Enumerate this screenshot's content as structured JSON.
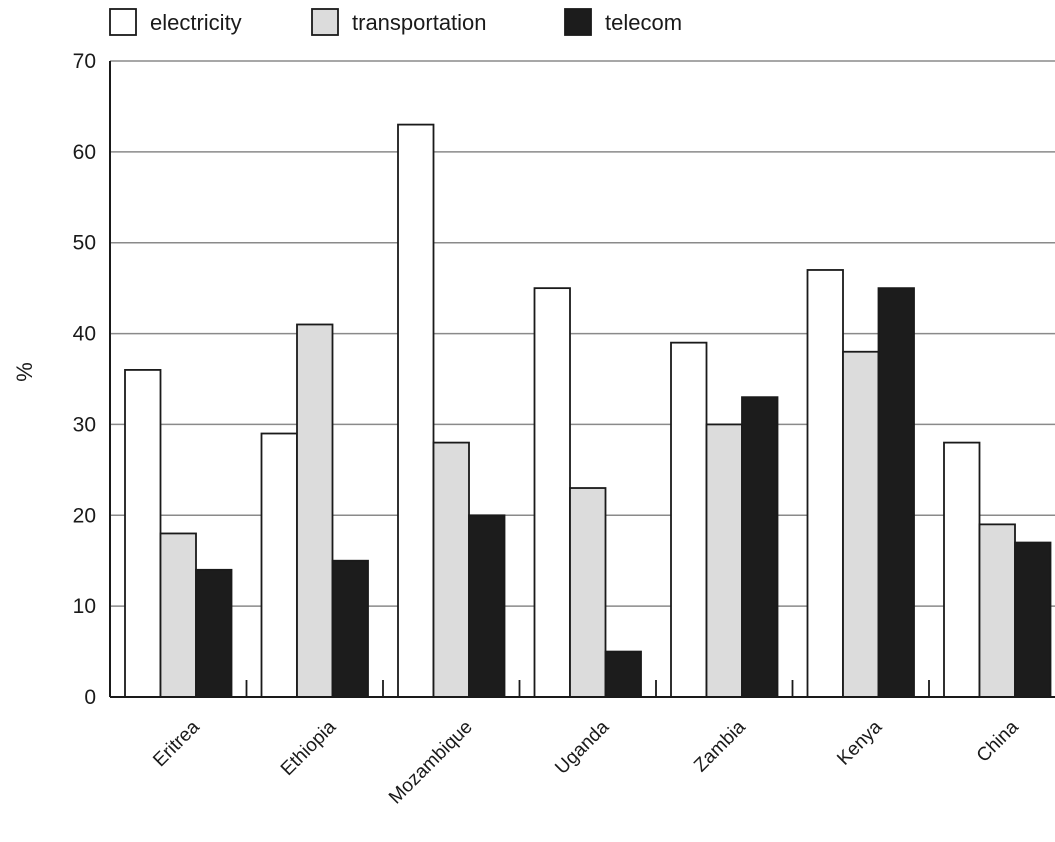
{
  "chart_data": {
    "type": "bar",
    "categories": [
      "Eritrea",
      "Ethiopia",
      "Mozambique",
      "Uganda",
      "Zambia",
      "Kenya",
      "China"
    ],
    "series": [
      {
        "name": "electricity",
        "values": [
          36,
          29,
          63,
          45,
          39,
          47,
          28
        ],
        "color": "#ffffff"
      },
      {
        "name": "transportation",
        "values": [
          18,
          41,
          28,
          23,
          30,
          38,
          19
        ],
        "color": "#dcdcdc"
      },
      {
        "name": "telecom",
        "values": [
          14,
          15,
          20,
          5,
          33,
          45,
          17
        ],
        "color": "#1c1c1c"
      }
    ],
    "ylabel": "%",
    "ylim": [
      0,
      70
    ],
    "yticks": [
      0,
      10,
      20,
      30,
      40,
      50,
      60,
      70
    ],
    "grid": true,
    "legend": "top-left"
  }
}
